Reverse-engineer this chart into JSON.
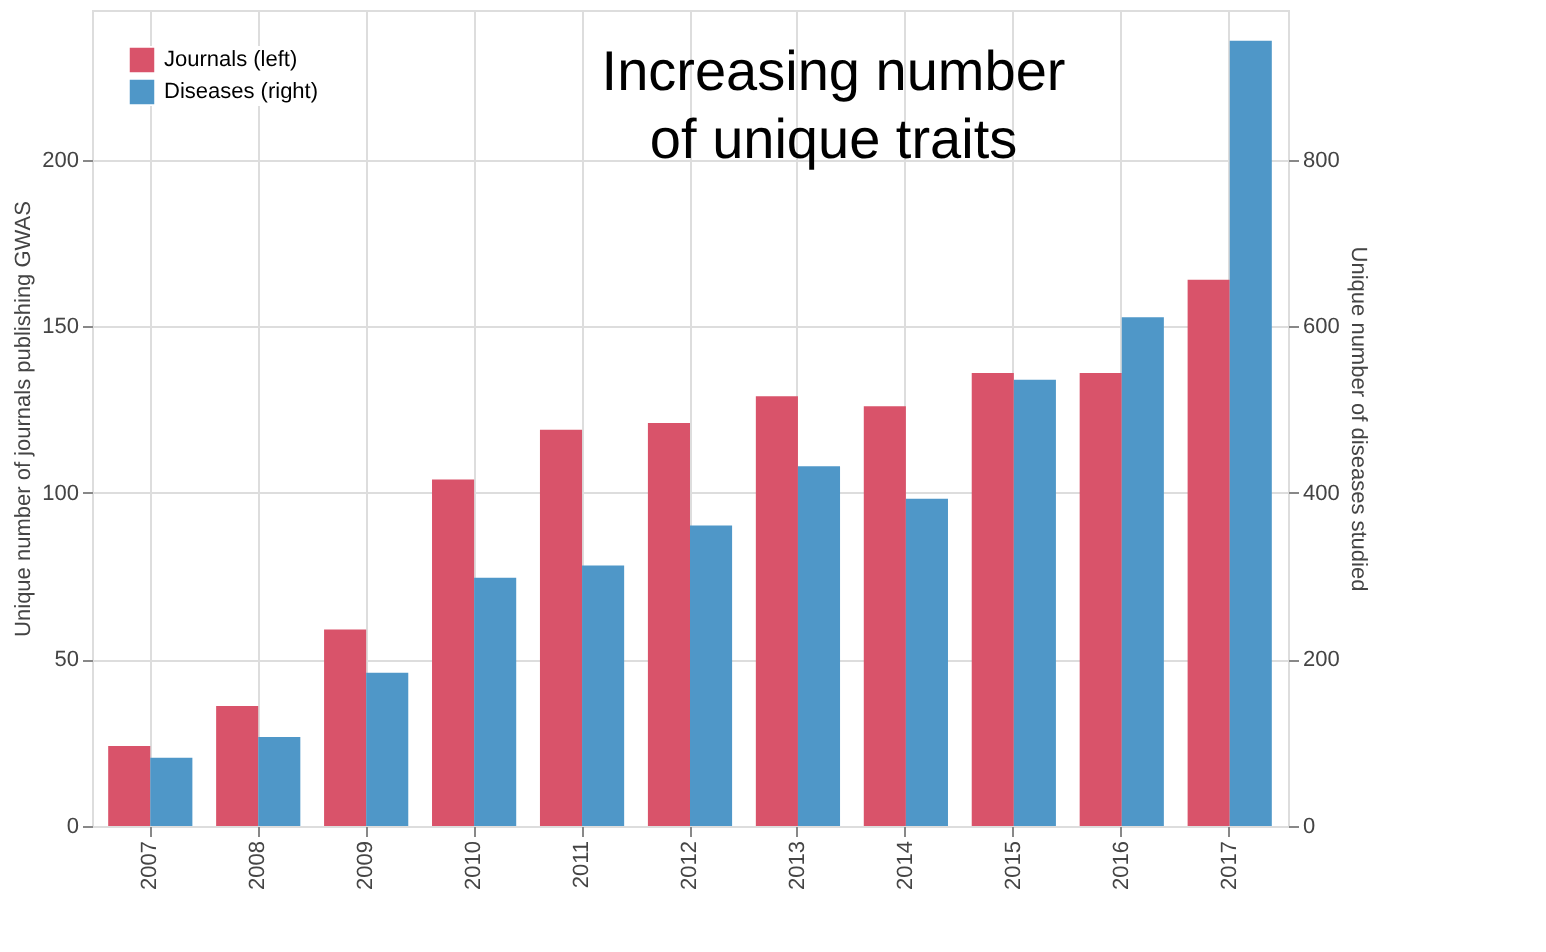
{
  "chart_data": {
    "type": "bar",
    "ylabel": "Unique number of journals publishing GWAS",
    "y2label": "Unique number of diseases studied",
    "annotations": [
      "Increasing number\nof unique traits"
    ],
    "categories": [
      "2007",
      "2008",
      "2009",
      "2010",
      "2011",
      "2012",
      "2013",
      "2014",
      "2015",
      "2016",
      "2017"
    ],
    "series": [
      {
        "name": "Journals (left)",
        "color": "#d9536a",
        "values": [
          24,
          36,
          59,
          104,
          119,
          121,
          129,
          126,
          136,
          136,
          164
        ]
      },
      {
        "name": "Diseases (right)",
        "color": "#4f97c8",
        "axis": "y2",
        "values": [
          82,
          107,
          184,
          298,
          313,
          361,
          432,
          393,
          536,
          611,
          943
        ]
      }
    ],
    "ylim": [
      0,
      245
    ],
    "yticks": [
      0,
      50,
      100,
      150,
      200
    ],
    "y2lim": [
      0,
      980
    ],
    "y2ticks": [
      0,
      200,
      400,
      600,
      800
    ],
    "grid": true,
    "legend": "top left"
  }
}
